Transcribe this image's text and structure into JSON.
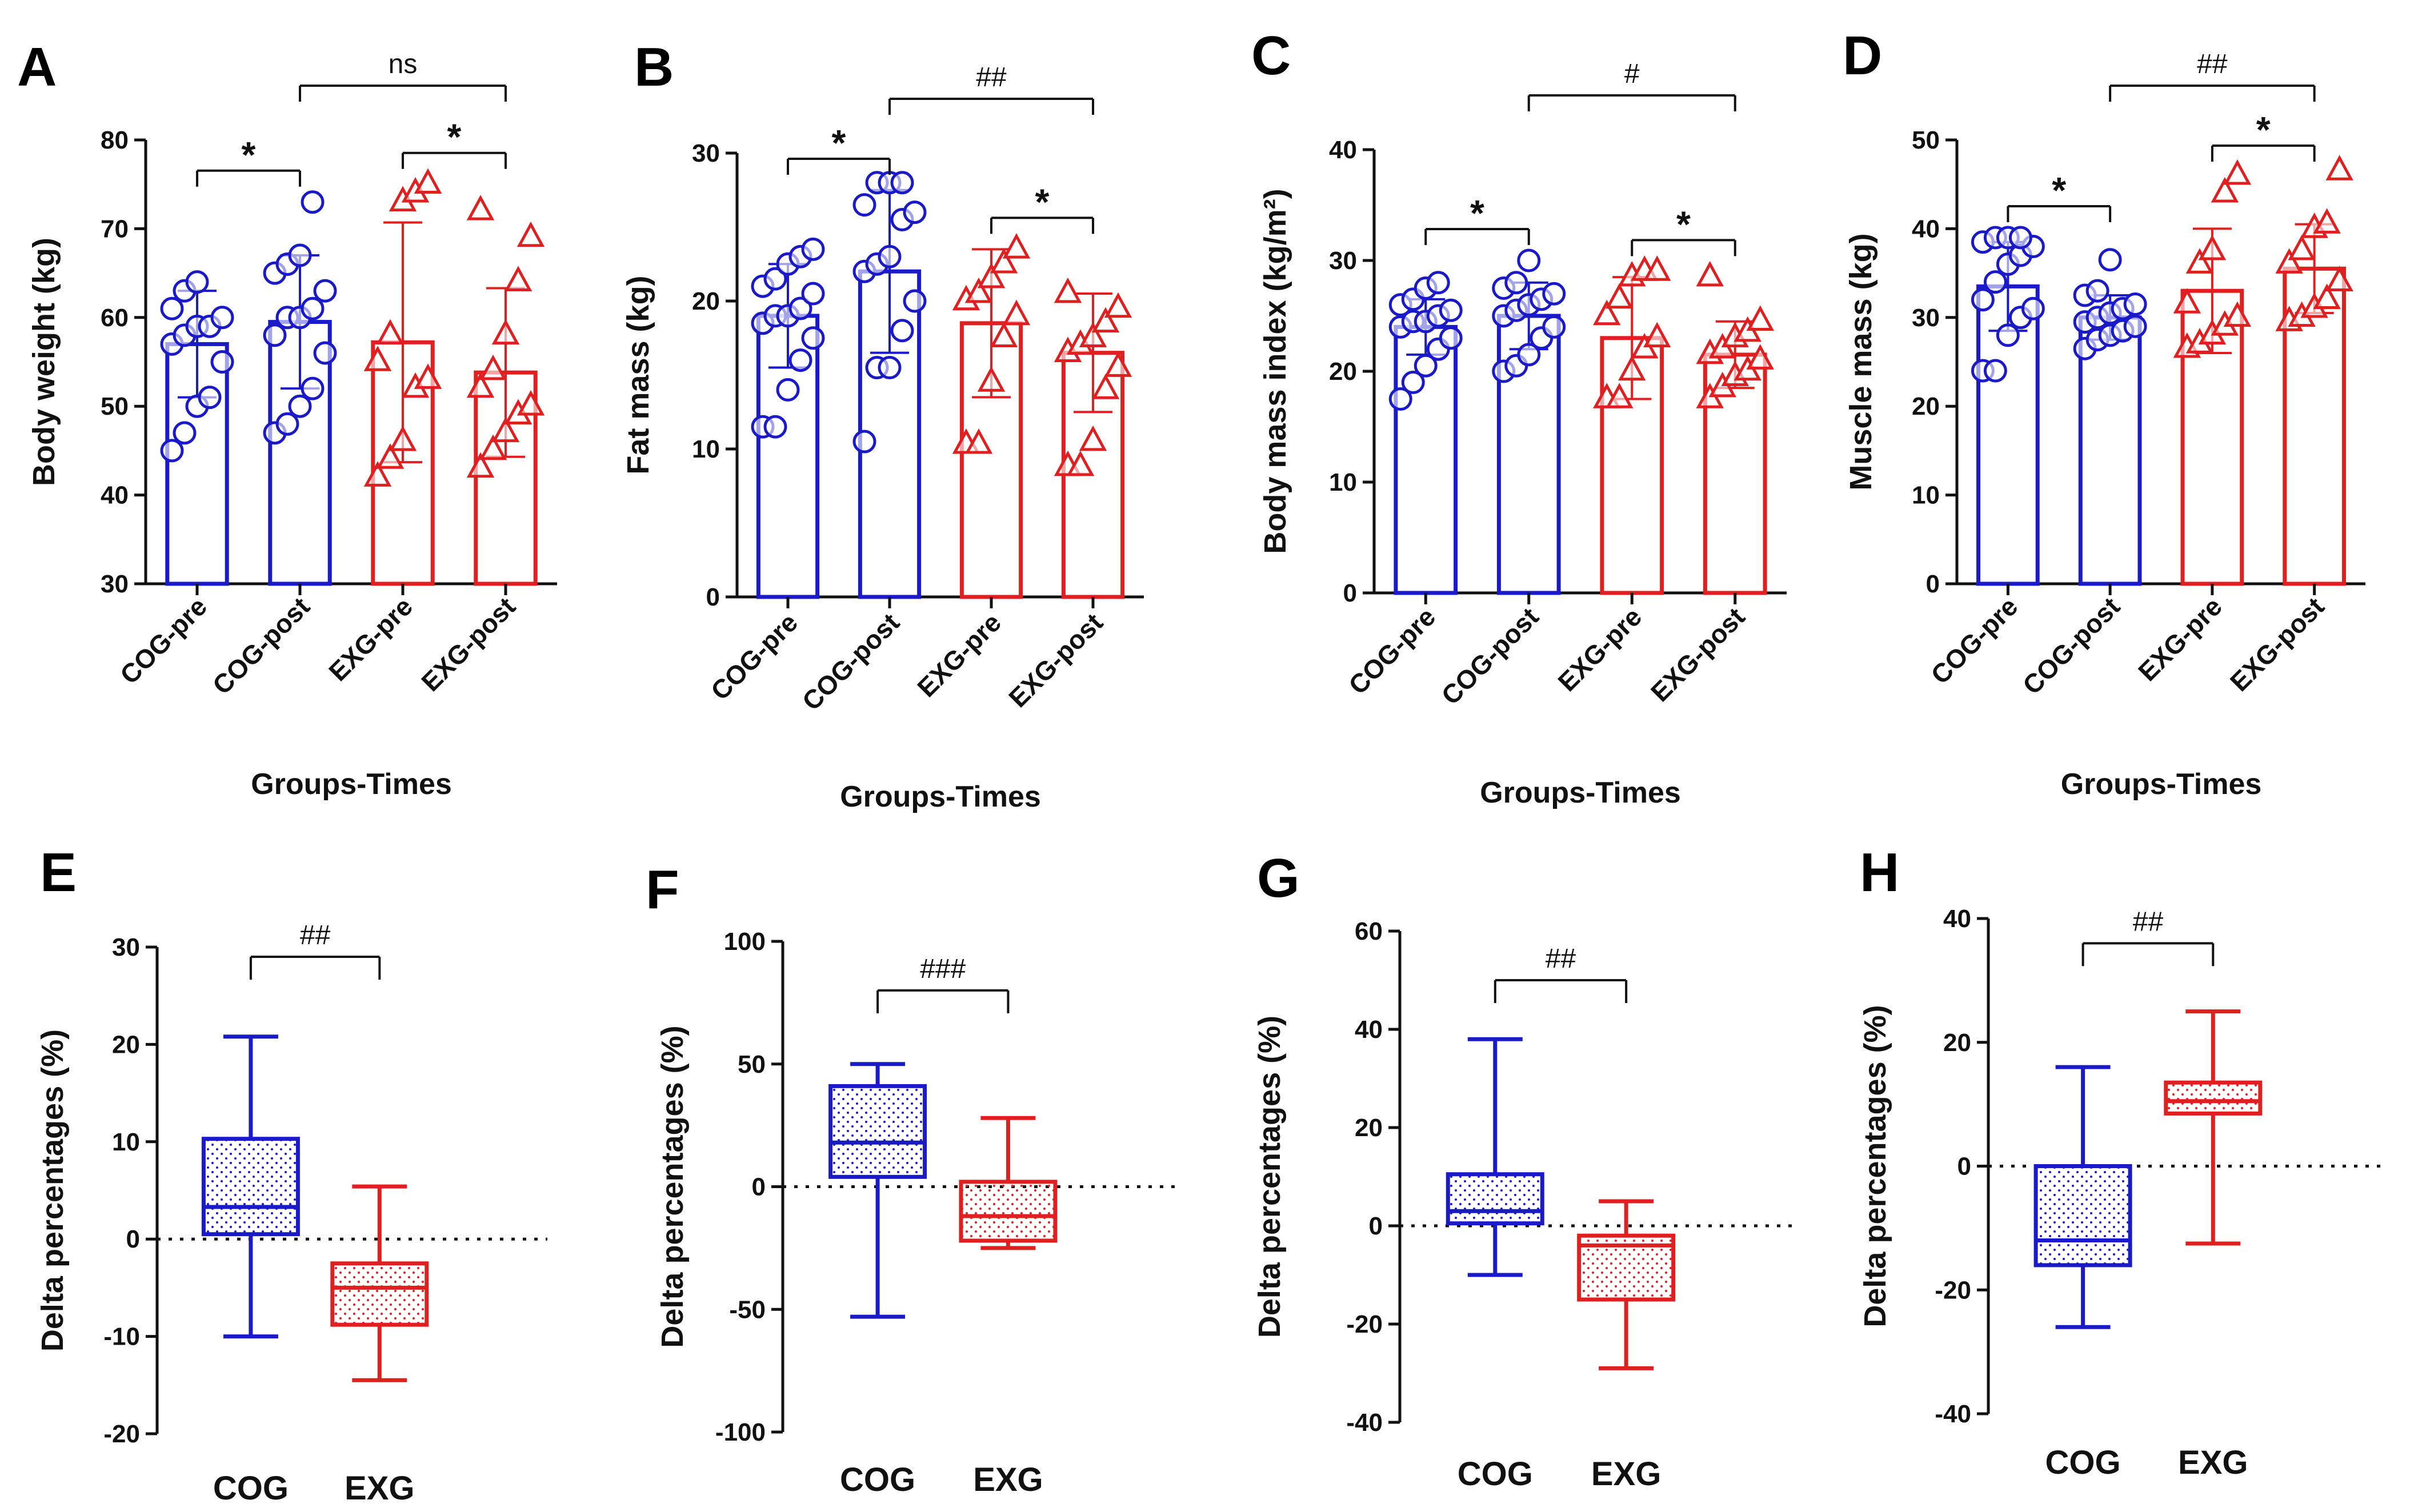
{
  "colors": {
    "cog": "#1a1ac8",
    "exg": "#e02020",
    "axis": "#111111"
  },
  "chart_data": [
    {
      "panel": "A",
      "type": "bar",
      "ylabel": "Body weight (kg)",
      "xlabel": "Groups-Times",
      "ylim": [
        30,
        80
      ],
      "yticks": [
        30,
        40,
        50,
        60,
        70,
        80
      ],
      "categories": [
        "COG-pre",
        "COG-post",
        "EXG-pre",
        "EXG-post"
      ],
      "means": [
        57,
        59.5,
        57.2,
        53.8
      ],
      "sd": [
        6,
        7.5,
        13.5,
        9.5
      ],
      "points": [
        [
          45,
          47,
          50,
          51,
          55,
          57,
          58,
          59,
          59,
          60,
          61,
          63,
          64
        ],
        [
          47,
          48,
          50,
          52,
          56,
          58,
          60,
          60,
          61,
          63,
          65,
          66,
          67,
          73
        ],
        [
          42,
          44,
          46,
          52,
          53,
          55,
          58,
          73,
          74,
          75
        ],
        [
          43,
          45,
          47,
          49,
          50,
          52,
          54,
          58,
          64,
          69,
          72
        ]
      ],
      "sig": [
        {
          "from": 0,
          "to": 1,
          "label": "*"
        },
        {
          "from": 2,
          "to": 3,
          "label": "*"
        },
        {
          "from": 1,
          "to": 3,
          "label": "ns"
        }
      ]
    },
    {
      "panel": "B",
      "type": "bar",
      "ylabel": "Fat mass (kg)",
      "xlabel": "Groups-Times",
      "ylim": [
        0,
        30
      ],
      "yticks": [
        0,
        10,
        20,
        30
      ],
      "categories": [
        "COG-pre",
        "COG-post",
        "EXG-pre",
        "EXG-post"
      ],
      "means": [
        19,
        22,
        18.5,
        16.5
      ],
      "sd": [
        3.5,
        5.5,
        5,
        4
      ],
      "points": [
        [
          11.5,
          11.5,
          14,
          16,
          17.5,
          18.5,
          19,
          19,
          19.5,
          20.5,
          21,
          21.5,
          22.5,
          23,
          23.5
        ],
        [
          10.5,
          15.5,
          15.5,
          18,
          20,
          22,
          22.5,
          23,
          25.5,
          26,
          26.5,
          28,
          28,
          28
        ],
        [
          10.3,
          10.3,
          14.5,
          17.5,
          19,
          20,
          20.5,
          21.5,
          22.5,
          23.5
        ],
        [
          8.8,
          8.8,
          10.5,
          14,
          15.5,
          16.5,
          17,
          17.5,
          18.5,
          19.5,
          20.5
        ]
      ],
      "sig": [
        {
          "from": 0,
          "to": 1,
          "label": "*"
        },
        {
          "from": 2,
          "to": 3,
          "label": "*"
        },
        {
          "from": 1,
          "to": 3,
          "label": "##"
        }
      ]
    },
    {
      "panel": "C",
      "type": "bar",
      "ylabel": "Body mass index (kg/m²)",
      "xlabel": "Groups-Times",
      "ylim": [
        0,
        40
      ],
      "yticks": [
        0,
        10,
        20,
        30,
        40
      ],
      "categories": [
        "COG-pre",
        "COG-post",
        "EXG-pre",
        "EXG-post"
      ],
      "means": [
        24,
        25,
        23,
        21.5
      ],
      "sd": [
        2.5,
        3,
        5.5,
        3
      ],
      "points": [
        [
          17.5,
          19,
          20.5,
          22,
          23,
          24,
          24.5,
          24.5,
          25,
          25.5,
          26,
          26.5,
          27.5,
          28
        ],
        [
          20,
          20.5,
          21.5,
          23,
          24,
          25,
          25.5,
          26,
          26.5,
          27,
          27.5,
          28,
          30
        ],
        [
          17.5,
          17.5,
          20,
          22,
          23,
          25,
          26.5,
          28.5,
          29,
          29
        ],
        [
          17.5,
          18.5,
          19.5,
          20,
          21,
          21.5,
          22,
          23,
          23.5,
          24.5,
          28.5
        ]
      ],
      "sig": [
        {
          "from": 0,
          "to": 1,
          "label": "*"
        },
        {
          "from": 2,
          "to": 3,
          "label": "*"
        },
        {
          "from": 1,
          "to": 3,
          "label": "#"
        }
      ]
    },
    {
      "panel": "D",
      "type": "bar",
      "ylabel": "Muscle mass (kg)",
      "xlabel": "Groups-Times",
      "ylim": [
        0,
        50
      ],
      "yticks": [
        0,
        10,
        20,
        30,
        40,
        50
      ],
      "categories": [
        "COG-pre",
        "COG-post",
        "EXG-pre",
        "EXG-post"
      ],
      "means": [
        33.5,
        30,
        33,
        35.5
      ],
      "sd": [
        5,
        2.5,
        7,
        5
      ],
      "points": [
        [
          24,
          24,
          28,
          30,
          31,
          32,
          34,
          36,
          37,
          38,
          38.5,
          39,
          39,
          39
        ],
        [
          26.5,
          27.5,
          28,
          28.5,
          29,
          29.5,
          30,
          30.5,
          31,
          31.5,
          32.5,
          33,
          36.5
        ],
        [
          26.5,
          27,
          28,
          29,
          30,
          31.5,
          36,
          37.5,
          44,
          46
        ],
        [
          29.5,
          30,
          31,
          32,
          34,
          36,
          37.5,
          40,
          40.5,
          46.5
        ]
      ],
      "sig": [
        {
          "from": 0,
          "to": 1,
          "label": "*"
        },
        {
          "from": 2,
          "to": 3,
          "label": "*"
        },
        {
          "from": 1,
          "to": 3,
          "label": "##"
        }
      ]
    },
    {
      "panel": "E",
      "type": "box",
      "ylabel": "Delta percentages (%)",
      "ylim": [
        -20,
        30
      ],
      "yticks": [
        -20,
        -10,
        0,
        10,
        20,
        30
      ],
      "categories": [
        "COG",
        "EXG"
      ],
      "boxes": [
        {
          "min": -10,
          "q1": 0.5,
          "median": 3.3,
          "q3": 10.3,
          "max": 20.8
        },
        {
          "min": -14.5,
          "q1": -8.8,
          "median": -5,
          "q3": -2.5,
          "max": 5.4
        }
      ],
      "sig": [
        {
          "from": 0,
          "to": 1,
          "label": "##"
        }
      ],
      "sig_y": 29
    },
    {
      "panel": "F",
      "type": "box",
      "ylabel": "Delta percentages (%)",
      "ylim": [
        -100,
        100
      ],
      "yticks": [
        -100,
        -50,
        0,
        50,
        100
      ],
      "categories": [
        "COG",
        "EXG"
      ],
      "boxes": [
        {
          "min": -53,
          "q1": 4,
          "median": 18,
          "q3": 41,
          "max": 50
        },
        {
          "min": -25,
          "q1": -22,
          "median": -12,
          "q3": 2,
          "max": 28
        }
      ],
      "sig": [
        {
          "from": 0,
          "to": 1,
          "label": "###"
        }
      ],
      "sig_y": 80
    },
    {
      "panel": "G",
      "type": "box",
      "ylabel": "Delta percentages (%)",
      "ylim": [
        -40,
        60
      ],
      "yticks": [
        -40,
        -20,
        0,
        20,
        40,
        60
      ],
      "categories": [
        "COG",
        "EXG"
      ],
      "boxes": [
        {
          "min": -10,
          "q1": 0.5,
          "median": 3,
          "q3": 10.5,
          "max": 38
        },
        {
          "min": -29,
          "q1": -15,
          "median": -4,
          "q3": -2,
          "max": 5
        }
      ],
      "sig": [
        {
          "from": 0,
          "to": 1,
          "label": "##"
        }
      ],
      "sig_y": 50
    },
    {
      "panel": "H",
      "type": "box",
      "ylabel": "Delta percentages (%)",
      "ylim": [
        -40,
        40
      ],
      "yticks": [
        -40,
        -20,
        0,
        20,
        40
      ],
      "categories": [
        "COG",
        "EXG"
      ],
      "boxes": [
        {
          "min": -26,
          "q1": -16,
          "median": -12,
          "q3": 0,
          "max": 16
        },
        {
          "min": -12.5,
          "q1": 8.5,
          "median": 10.5,
          "q3": 13.5,
          "max": 25
        }
      ],
      "sig": [
        {
          "from": 0,
          "to": 1,
          "label": "##"
        }
      ],
      "sig_y": 36
    }
  ]
}
